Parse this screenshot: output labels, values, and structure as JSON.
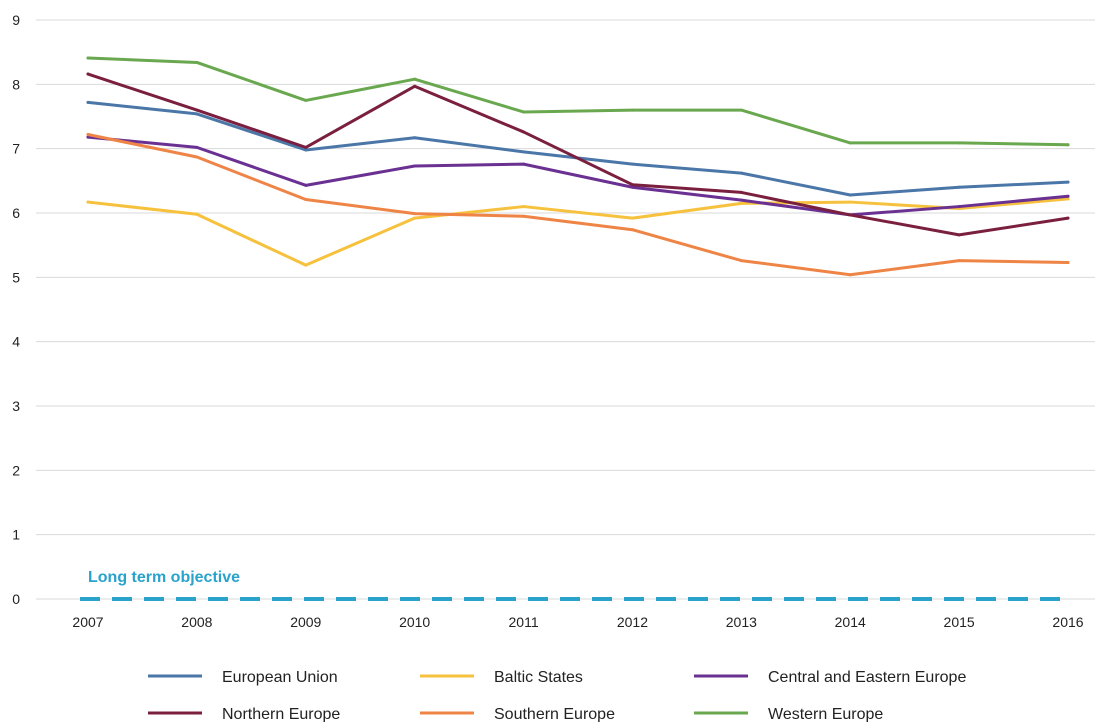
{
  "chart_data": {
    "type": "line",
    "title": "",
    "xlabel": "",
    "ylabel": "",
    "x": [
      "2007",
      "2008",
      "2009",
      "2010",
      "2011",
      "2012",
      "2013",
      "2014",
      "2015",
      "2016"
    ],
    "y_ticks": [
      "0",
      "1",
      "2",
      "3",
      "4",
      "5",
      "6",
      "7",
      "8",
      "9"
    ],
    "ylim": [
      0,
      9
    ],
    "grid": true,
    "legend_position": "bottom",
    "series": [
      {
        "name": "European Union",
        "color": "#4a76a8",
        "values": [
          7.72,
          7.54,
          6.98,
          7.17,
          6.95,
          6.76,
          6.62,
          6.28,
          6.4,
          6.48
        ]
      },
      {
        "name": "Baltic States",
        "color": "#f6c13d",
        "values": [
          6.17,
          5.98,
          5.19,
          5.92,
          6.1,
          5.92,
          6.15,
          6.17,
          6.07,
          6.22
        ]
      },
      {
        "name": "Central and Eastern Europe",
        "color": "#6a3192",
        "values": [
          7.18,
          7.02,
          6.43,
          6.73,
          6.76,
          6.4,
          6.2,
          5.97,
          6.1,
          6.26
        ]
      },
      {
        "name": "Northern Europe",
        "color": "#7b1f3f",
        "values": [
          8.16,
          7.6,
          7.02,
          7.97,
          7.26,
          6.44,
          6.32,
          5.97,
          5.66,
          5.92
        ]
      },
      {
        "name": "Southern Europe",
        "color": "#ee8445",
        "values": [
          7.22,
          6.87,
          6.21,
          5.99,
          5.95,
          5.74,
          5.26,
          5.04,
          5.26,
          5.23
        ]
      },
      {
        "name": "Western Europe",
        "color": "#6aa84f",
        "values": [
          8.41,
          8.34,
          7.75,
          8.08,
          7.57,
          7.6,
          7.6,
          7.09,
          7.09,
          7.06
        ]
      }
    ],
    "objective": {
      "label": "Long term objective",
      "value": 0,
      "color": "#29a3cc"
    }
  }
}
